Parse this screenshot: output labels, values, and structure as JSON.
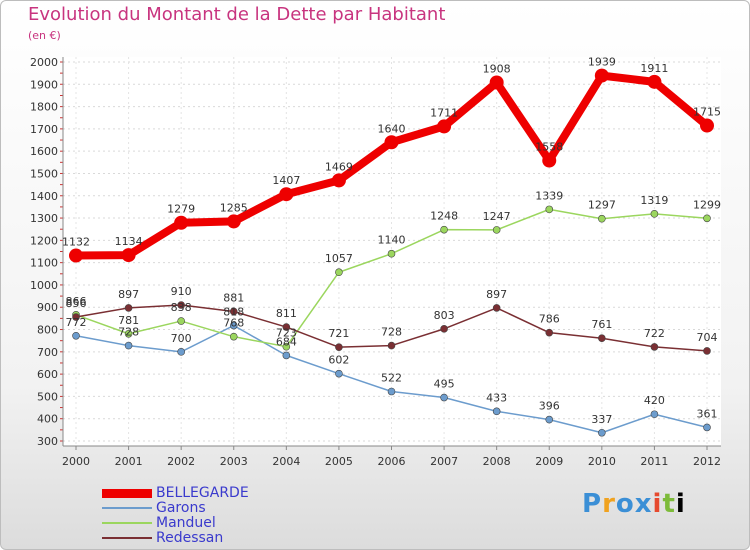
{
  "title": "Evolution du Montant de la Dette par Habitant",
  "subtitle": "(en €)",
  "brand": "Proxiti",
  "chart_data": {
    "type": "line",
    "title": "Evolution du Montant de la Dette par Habitant",
    "ylabel": "(en €)",
    "xlabel": "",
    "x": [
      2000,
      2001,
      2002,
      2003,
      2004,
      2005,
      2006,
      2007,
      2008,
      2009,
      2010,
      2011,
      2012
    ],
    "ylim": [
      300,
      2000
    ],
    "yticks": [
      300,
      400,
      500,
      600,
      700,
      800,
      900,
      1000,
      1100,
      1200,
      1300,
      1400,
      1500,
      1600,
      1700,
      1800,
      1900,
      2000
    ],
    "grid": true,
    "legend_position": "bottom-left",
    "series": [
      {
        "name": "BELLEGARDE",
        "color": "#ee0000",
        "values": [
          1132,
          1134,
          1279,
          1285,
          1407,
          1469,
          1640,
          1711,
          1908,
          1558,
          1939,
          1911,
          1715
        ]
      },
      {
        "name": "Garons",
        "color": "#6c9ccd",
        "values": [
          772,
          728,
          700,
          818,
          684,
          602,
          522,
          495,
          433,
          396,
          337,
          420,
          361
        ]
      },
      {
        "name": "Manduel",
        "color": "#9bd65e",
        "values": [
          866,
          781,
          838,
          768,
          723,
          1057,
          1140,
          1248,
          1247,
          1339,
          1297,
          1319,
          1299
        ]
      },
      {
        "name": "Redessan",
        "color": "#7a2f33",
        "values": [
          856,
          897,
          910,
          881,
          811,
          721,
          728,
          803,
          897,
          786,
          761,
          722,
          704
        ]
      }
    ]
  }
}
